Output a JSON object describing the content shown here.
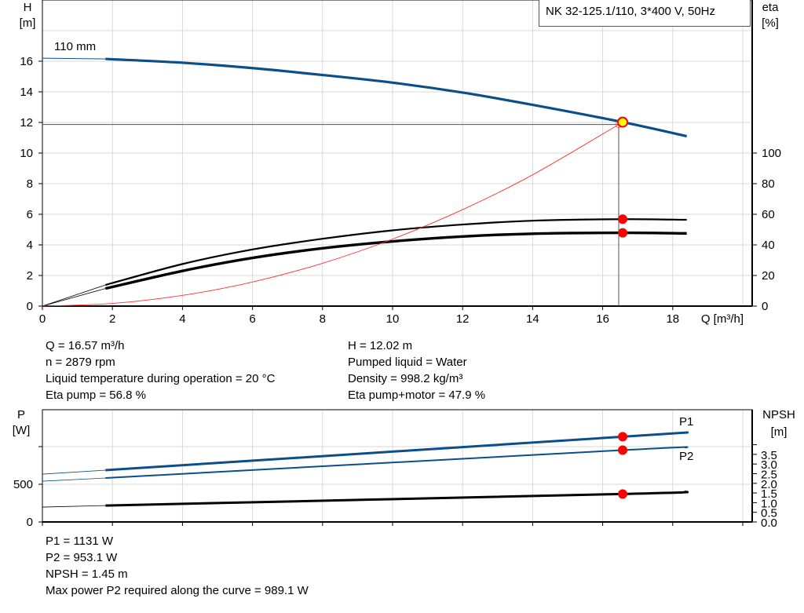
{
  "title": "NK 32-125.1/110, 3*400 V, 50Hz",
  "colors": {
    "head": "#0b4f8a",
    "power": "#0b4f8a",
    "eta": "#000000",
    "npsh": "#000000",
    "system": "#ff3030",
    "point": "#ff0000",
    "duty_fill": "#ffff00",
    "grid": "#d8d8d8"
  },
  "chart_data": [
    {
      "type": "line",
      "xlabel": "Q [m³/h]",
      "ylabel_left": "H\n[m]",
      "ylabel_left_lines": [
        "H",
        "[m]"
      ],
      "ylabel_right_lines": [
        "eta",
        "[%]"
      ],
      "xlim": [
        0,
        20
      ],
      "ylim_left": [
        0,
        20
      ],
      "ylim_right": [
        0,
        200
      ],
      "x_ticks": [
        "0",
        "2",
        "4",
        "6",
        "8",
        "10",
        "12",
        "14",
        "16",
        "18"
      ],
      "y_ticks_left": [
        "0",
        "2",
        "4",
        "6",
        "8",
        "10",
        "12",
        "14",
        "16"
      ],
      "y_ticks_right": [
        "0",
        "20",
        "40",
        "60",
        "80",
        "100"
      ],
      "grid": true,
      "curve_label": "110 mm",
      "series": [
        {
          "key": "head",
          "axis": "left",
          "x": [
            1.8,
            4,
            6,
            8,
            10,
            12,
            14,
            16.57,
            18.4
          ],
          "y": [
            16.15,
            15.9,
            15.55,
            15.1,
            14.6,
            13.95,
            13.15,
            12.02,
            11.1
          ],
          "extension": {
            "x": [
              0,
              1.8
            ],
            "y": [
              16.2,
              16.15
            ]
          }
        },
        {
          "key": "eta_pump",
          "axis": "right",
          "x": [
            1.8,
            4,
            6,
            8,
            10,
            12,
            14,
            16.57,
            18.4
          ],
          "y": [
            13.8,
            27.5,
            37,
            44,
            49.5,
            53.3,
            55.8,
            56.8,
            56.4
          ],
          "extension": {
            "x": [
              0,
              1.8
            ],
            "y": [
              0,
              13.8
            ]
          }
        },
        {
          "key": "eta_pump_motor",
          "axis": "right",
          "x": [
            1.8,
            4,
            6,
            8,
            10,
            12,
            14,
            16.57,
            18.4
          ],
          "y": [
            11.5,
            23,
            31.5,
            37.8,
            42.3,
            45.5,
            47.3,
            47.9,
            47.5
          ],
          "extension": {
            "x": [
              0,
              1.8
            ],
            "y": [
              0,
              11.5
            ]
          }
        },
        {
          "key": "system",
          "axis": "left",
          "x": [
            0,
            2,
            4,
            6,
            8,
            10,
            12,
            14,
            16.57
          ],
          "y": [
            0,
            0.175,
            0.7,
            1.576,
            2.8,
            4.378,
            6.304,
            8.58,
            12.02
          ]
        }
      ],
      "duty_point": {
        "Q": 16.57,
        "H": 12.02,
        "eta_pump": 56.8,
        "eta_pump_motor": 47.9
      }
    },
    {
      "type": "line",
      "ylabel_left_lines": [
        "P",
        "[W]"
      ],
      "ylabel_right_lines": [
        "NPSH",
        "[m]"
      ],
      "xlim": [
        0,
        20
      ],
      "ylim_left": [
        0,
        1500
      ],
      "ylim_right": [
        0,
        4
      ],
      "y_ticks_left": [
        "0",
        "500"
      ],
      "y_ticks_left_minor": [
        1000
      ],
      "y_ticks_right": [
        "0.0",
        "0.5",
        "1.0",
        "1.5",
        "2.0",
        "2.5",
        "3.0",
        "3.5"
      ],
      "grid": true,
      "series": [
        {
          "key": "P1",
          "name": "P1",
          "axis": "left",
          "x": [
            1.8,
            16.57,
            18.4
          ],
          "y": [
            687,
            1131,
            1187
          ],
          "extension": {
            "x": [
              0,
              1.8
            ],
            "y": [
              635,
              687
            ]
          }
        },
        {
          "key": "P2",
          "name": "P2",
          "axis": "left",
          "x": [
            1.8,
            16.57,
            18.4
          ],
          "y": [
            583,
            953.1,
            989.1
          ],
          "extension": {
            "x": [
              0,
              1.8
            ],
            "y": [
              541,
              583
            ]
          }
        },
        {
          "key": "NPSH",
          "axis": "right",
          "x": [
            1.8,
            16.57,
            18.4
          ],
          "y": [
            0.85,
            1.45,
            1.56
          ],
          "extension": {
            "x": [
              0,
              1.8
            ],
            "y": [
              0.77,
              0.85
            ]
          }
        }
      ],
      "duty_point": {
        "Q": 16.57,
        "P1": 1131,
        "P2": 953.1,
        "NPSH": 1.45
      }
    }
  ],
  "info_top": {
    "left": [
      "Q = 16.57 m³/h",
      "n = 2879 rpm",
      "Liquid temperature during operation = 20 °C",
      "Eta pump = 56.8 %"
    ],
    "right": [
      "H = 12.02 m",
      "Pumped liquid = Water",
      "Density = 998.2 kg/m³",
      "Eta pump+motor = 47.9 %"
    ]
  },
  "info_bottom": [
    "P1 = 1131 W",
    "P2 = 953.1 W",
    "NPSH = 1.45 m",
    "Max power P2 required along the curve = 989.1 W"
  ]
}
